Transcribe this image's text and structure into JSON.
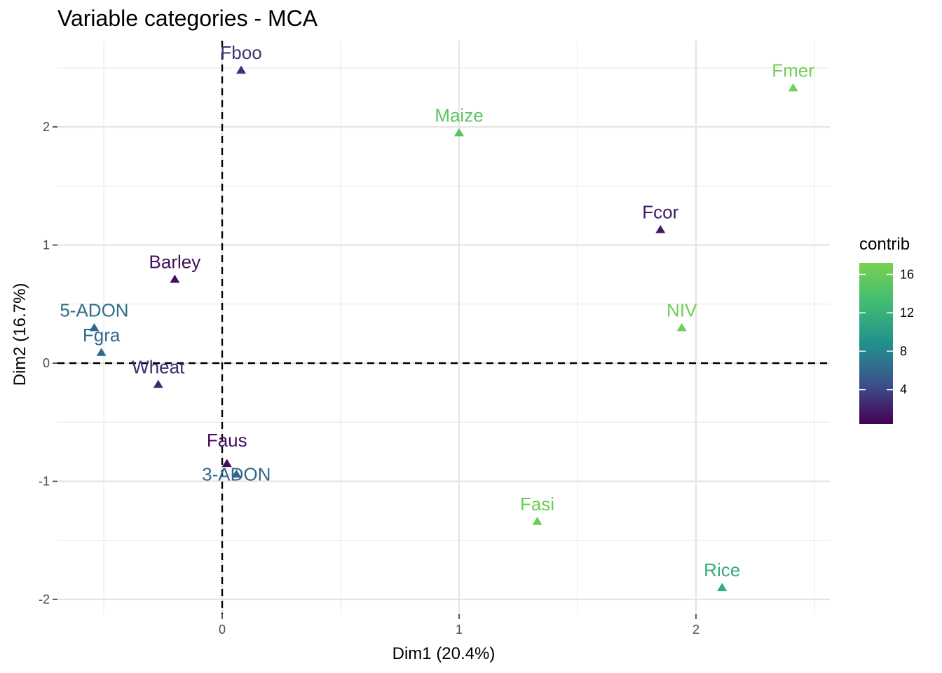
{
  "chart_data": {
    "type": "scatter",
    "title": "Variable categories - MCA",
    "xlabel": "Dim1 (20.4%)",
    "ylabel": "Dim2 (16.7%)",
    "xlim": [
      -0.69,
      2.57
    ],
    "ylim": [
      -2.1,
      2.58
    ],
    "xticks": [
      0,
      1,
      2
    ],
    "yticks": [
      -2,
      -1,
      0,
      1,
      2
    ],
    "grid": true,
    "reference_lines": {
      "x": 0,
      "y": 0,
      "style": "dashed"
    },
    "marker": "triangle",
    "points": [
      {
        "label": "Fboo",
        "x": 0.08,
        "y": 2.48,
        "contrib": 3.0
      },
      {
        "label": "Fmer",
        "x": 2.41,
        "y": 2.33,
        "contrib": 16.8
      },
      {
        "label": "Maize",
        "x": 1.0,
        "y": 1.95,
        "contrib": 14.8
      },
      {
        "label": "Fcor",
        "x": 1.85,
        "y": 1.13,
        "contrib": 1.8
      },
      {
        "label": "Barley",
        "x": -0.2,
        "y": 0.71,
        "contrib": 1.2
      },
      {
        "label": "NIV",
        "x": 1.94,
        "y": 0.3,
        "contrib": 16.5
      },
      {
        "label": "5-ADON",
        "x": -0.54,
        "y": 0.3,
        "contrib": 6.5
      },
      {
        "label": "Fgra",
        "x": -0.51,
        "y": 0.09,
        "contrib": 6.2
      },
      {
        "label": "Wheat",
        "x": -0.27,
        "y": -0.18,
        "contrib": 2.5
      },
      {
        "label": "Faus",
        "x": 0.02,
        "y": -0.85,
        "contrib": 1.0
      },
      {
        "label": "3-ADON",
        "x": 0.06,
        "y": -0.94,
        "contrib": 6.0
      },
      {
        "label": "Fasi",
        "x": 1.33,
        "y": -1.34,
        "contrib": 16.3
      },
      {
        "label": "Rice",
        "x": 2.11,
        "y": -1.9,
        "contrib": 11.5
      }
    ],
    "legend": {
      "title": "contrib",
      "placement": "right",
      "ticks": [
        4,
        8,
        12,
        16
      ],
      "range": [
        0.4,
        17.2
      ],
      "colors": [
        "#440154",
        "#3b528b",
        "#21908c",
        "#5dc863",
        "#7ad151"
      ]
    }
  }
}
